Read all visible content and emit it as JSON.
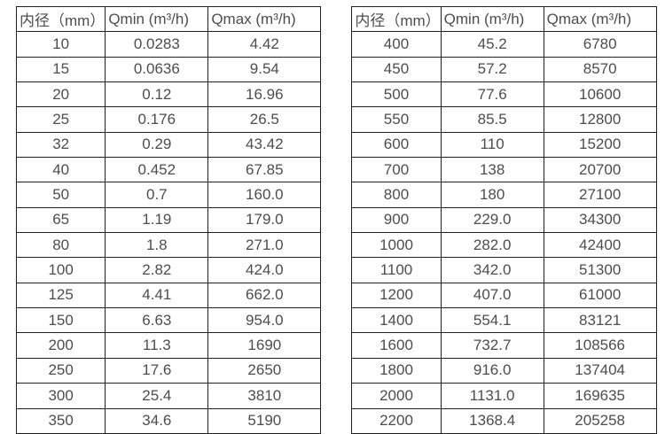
{
  "colors": {
    "background": "#ffffff",
    "table_border": "#1f1f1f",
    "text": "#4d4d4d"
  },
  "chart_data": [
    {
      "type": "table",
      "title": "",
      "columns": [
        "内径（mm）",
        "Qmin (m³/h)",
        "Qmax (m³/h)"
      ],
      "rows": [
        [
          "10",
          "0.0283",
          "4.42"
        ],
        [
          "15",
          "0.0636",
          "9.54"
        ],
        [
          "20",
          "0.12",
          "16.96"
        ],
        [
          "25",
          "0.176",
          "26.5"
        ],
        [
          "32",
          "0.29",
          "43.42"
        ],
        [
          "40",
          "0.452",
          "67.85"
        ],
        [
          "50",
          "0.7",
          "160.0"
        ],
        [
          "65",
          "1.19",
          "179.0"
        ],
        [
          "80",
          "1.8",
          "271.0"
        ],
        [
          "100",
          "2.82",
          "424.0"
        ],
        [
          "125",
          "4.41",
          "662.0"
        ],
        [
          "150",
          "6.63",
          "954.0"
        ],
        [
          "200",
          "11.3",
          "1690"
        ],
        [
          "250",
          "17.6",
          "2650"
        ],
        [
          "300",
          "25.4",
          "3810"
        ],
        [
          "350",
          "34.6",
          "5190"
        ]
      ]
    },
    {
      "type": "table",
      "title": "",
      "columns": [
        "内径（mm）",
        "Qmin (m³/h)",
        "Qmax (m³/h)"
      ],
      "rows": [
        [
          "400",
          "45.2",
          "6780"
        ],
        [
          "450",
          "57.2",
          "8570"
        ],
        [
          "500",
          "77.6",
          "10600"
        ],
        [
          "550",
          "85.5",
          "12800"
        ],
        [
          "600",
          "110",
          "15200"
        ],
        [
          "700",
          "138",
          "20700"
        ],
        [
          "800",
          "180",
          "27100"
        ],
        [
          "900",
          "229.0",
          "34300"
        ],
        [
          "1000",
          "282.0",
          "42400"
        ],
        [
          "1100",
          "342.0",
          "51300"
        ],
        [
          "1200",
          "407.0",
          "61000"
        ],
        [
          "1400",
          "554.1",
          "83121"
        ],
        [
          "1600",
          "732.7",
          "108566"
        ],
        [
          "1800",
          "916.0",
          "137404"
        ],
        [
          "2000",
          "1131.0",
          "169635"
        ],
        [
          "2200",
          "1368.4",
          "205258"
        ]
      ]
    }
  ]
}
